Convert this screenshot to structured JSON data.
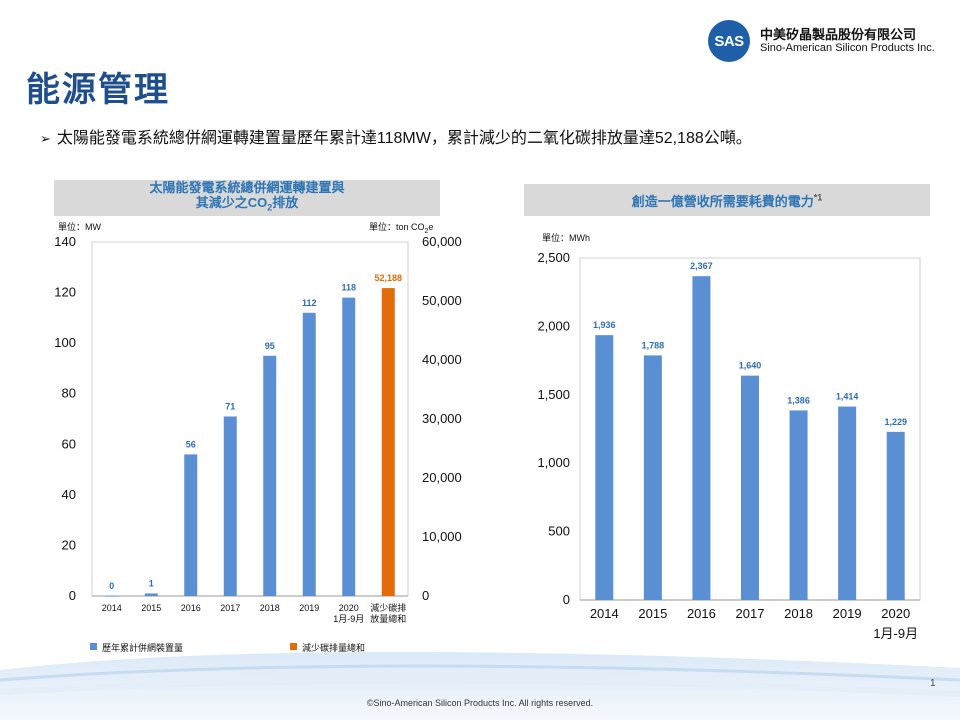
{
  "header": {
    "logo_text": "SAS",
    "company_zh": "中美矽晶製品股份有限公司",
    "company_en": "Sino-American Silicon Products Inc."
  },
  "page": {
    "title": "能源管理",
    "bullet": "太陽能發電系統總併網運轉建置量歷年累計達118MW，累計減少的二氧化碳排放量達52,188公噸。",
    "page_number": "1",
    "copyright": "©Sino-American Silicon Products Inc. All rights reserved."
  },
  "chart_data": [
    {
      "type": "bar",
      "title_line1": "太陽能發電系統總併網運轉建置與",
      "title_line2_prefix": "其減少之",
      "title_line2_co2": "CO",
      "title_line2_sub": "2",
      "title_line2_suffix": "排放",
      "ylabel": "單位：MW",
      "y2label_prefix": "單位：ton CO",
      "y2label_sub": "2",
      "y2label_suffix": "e",
      "ylim": [
        0,
        140
      ],
      "y2lim": [
        0,
        60000
      ],
      "yticks": [
        "0",
        "20",
        "40",
        "60",
        "80",
        "100",
        "120",
        "140"
      ],
      "y2ticks": [
        "0",
        "10,000",
        "20,000",
        "30,000",
        "40,000",
        "50,000",
        "60,000"
      ],
      "categories": [
        "2014",
        "2015",
        "2016",
        "2017",
        "2018",
        "2019",
        "2020",
        "減少碳排"
      ],
      "category_sublabels": [
        "",
        "",
        "",
        "",
        "",
        "",
        "1月-9月",
        "放量總和"
      ],
      "series": [
        {
          "name": "歷年累計併網裝置量",
          "color": "#5b8fd4",
          "axis": "left",
          "values": [
            0,
            1,
            56,
            71,
            95,
            112,
            118,
            null
          ],
          "labels": [
            "0",
            "1",
            "56",
            "71",
            "95",
            "112",
            "118",
            ""
          ]
        },
        {
          "name": "減少碳排量總和",
          "color": "#e26b0a",
          "axis": "right",
          "values": [
            null,
            null,
            null,
            null,
            null,
            null,
            null,
            52188
          ],
          "labels": [
            "",
            "",
            "",
            "",
            "",
            "",
            "",
            "52,188"
          ]
        }
      ],
      "legend_position": "bottom"
    },
    {
      "type": "bar",
      "title": "創造一億營收所需要耗費的電力",
      "title_note": "*1",
      "ylabel": "單位：MWh",
      "ylim": [
        0,
        2500
      ],
      "yticks": [
        "0",
        "500",
        "1,000",
        "1,500",
        "2,000",
        "2,500"
      ],
      "categories": [
        "2014",
        "2015",
        "2016",
        "2017",
        "2018",
        "2019",
        "2020"
      ],
      "category_sublabels": [
        "",
        "",
        "",
        "",
        "",
        "",
        "1月-9月"
      ],
      "series": [
        {
          "color": "#5b8fd4",
          "values": [
            1936,
            1788,
            2367,
            1640,
            1386,
            1414,
            1229
          ],
          "labels": [
            "1,936",
            "1,788",
            "2,367",
            "1,640",
            "1,386",
            "1,414",
            "1,229"
          ]
        }
      ]
    }
  ]
}
